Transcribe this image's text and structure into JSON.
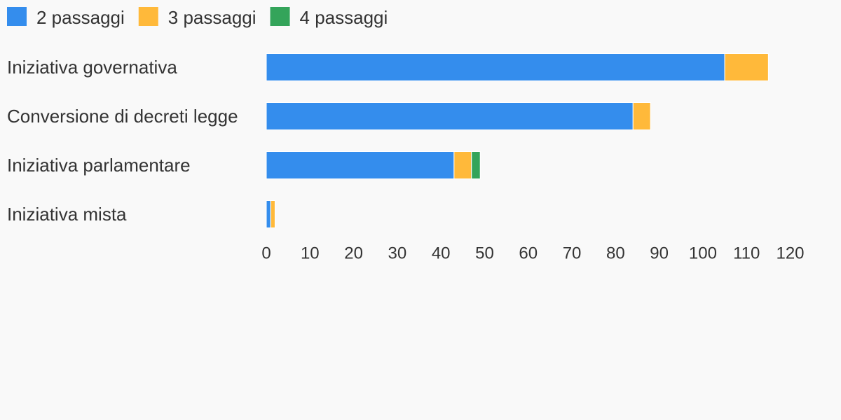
{
  "chart_data": {
    "type": "stacked-bar-horizontal",
    "categories": [
      "Iniziativa governativa",
      "Conversione di decreti legge",
      "Iniziativa parlamentare",
      "Iniziativa mista"
    ],
    "series": [
      {
        "name": "2 passaggi",
        "color": "#348ded",
        "values": [
          105,
          84,
          43,
          1
        ]
      },
      {
        "name": "3 passaggi",
        "color": "#ffb93a",
        "values": [
          10,
          4,
          4,
          1
        ]
      },
      {
        "name": "4 passaggi",
        "color": "#34a45a",
        "values": [
          0,
          0,
          2,
          0
        ]
      }
    ],
    "xlim": [
      0,
      120
    ],
    "xticks": [
      0,
      10,
      20,
      30,
      40,
      50,
      60,
      70,
      80,
      90,
      100,
      110,
      120
    ],
    "grid": false,
    "legend": "top-left"
  }
}
